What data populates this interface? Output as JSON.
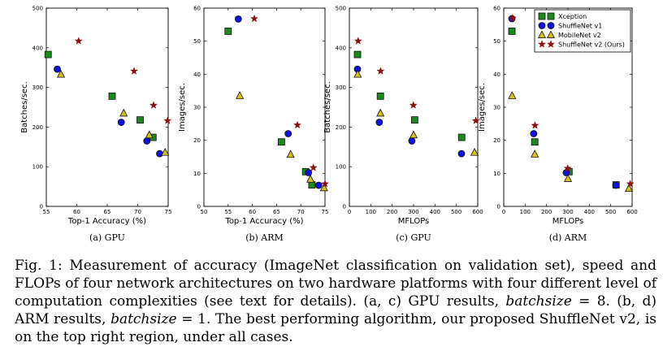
{
  "colors": {
    "Xception": "#1a8a1a",
    "ShuffleNet v1": "#1010e0",
    "MobileNet v2": "#d4c21a",
    "ShuffleNet v2 (Ours)": "#8b1010"
  },
  "chart_data": [
    {
      "type": "scatter",
      "title": "(a) GPU",
      "xlabel": "Top-1 Accuracy (%)",
      "ylabel": "Batches/sec.",
      "xlim": [
        55,
        75
      ],
      "ylim": [
        0,
        500
      ],
      "xticks": [
        55,
        60,
        65,
        70,
        75
      ],
      "yticks": [
        0,
        100,
        200,
        300,
        400,
        500
      ],
      "series": [
        {
          "name": "Xception",
          "marker": "square",
          "points": [
            [
              55.3,
              383
            ],
            [
              65.8,
              278
            ],
            [
              70.4,
              218
            ],
            [
              72.5,
              174
            ]
          ]
        },
        {
          "name": "ShuffleNet v1",
          "marker": "circle",
          "points": [
            [
              56.8,
              346
            ],
            [
              67.3,
              212
            ],
            [
              71.5,
              165
            ],
            [
              73.6,
              133
            ]
          ]
        },
        {
          "name": "MobileNet v2",
          "marker": "triangle",
          "points": [
            [
              57.4,
              333
            ],
            [
              67.7,
              235
            ],
            [
              71.9,
              180
            ],
            [
              74.5,
              136
            ]
          ]
        },
        {
          "name": "ShuffleNet v2 (Ours)",
          "marker": "star",
          "points": [
            [
              60.3,
              417
            ],
            [
              69.4,
              341
            ],
            [
              72.6,
              255
            ],
            [
              74.9,
              216
            ]
          ]
        }
      ]
    },
    {
      "type": "scatter",
      "title": "(b) ARM",
      "xlabel": "Top-1 Accuracy (%)",
      "ylabel": "Images/sec.",
      "xlim": [
        50,
        75
      ],
      "ylim": [
        0,
        60
      ],
      "xticks": [
        50,
        55,
        60,
        65,
        70,
        75
      ],
      "yticks": [
        0,
        10,
        20,
        30,
        40,
        50,
        60
      ],
      "series": [
        {
          "name": "Xception",
          "marker": "square",
          "points": [
            [
              55.0,
              53
            ],
            [
              66.0,
              19.5
            ],
            [
              71.0,
              10.5
            ],
            [
              72.3,
              6.5
            ]
          ]
        },
        {
          "name": "ShuffleNet v1",
          "marker": "circle",
          "points": [
            [
              57.1,
              56.7
            ],
            [
              67.4,
              22
            ],
            [
              71.6,
              10.2
            ],
            [
              73.7,
              6.4
            ]
          ]
        },
        {
          "name": "MobileNet v2",
          "marker": "triangle",
          "points": [
            [
              57.4,
              33.5
            ],
            [
              67.9,
              15.7
            ],
            [
              72.0,
              8.2
            ],
            [
              74.8,
              5.6
            ]
          ]
        },
        {
          "name": "ShuffleNet v2 (Ours)",
          "marker": "star",
          "points": [
            [
              60.4,
              56.8
            ],
            [
              69.3,
              24.6
            ],
            [
              72.6,
              11.7
            ],
            [
              75.0,
              6.8
            ]
          ]
        }
      ]
    },
    {
      "type": "scatter",
      "title": "(c) GPU",
      "xlabel": "MFLOPs",
      "ylabel": "Batches/sec.",
      "xlim": [
        0,
        600
      ],
      "ylim": [
        0,
        500
      ],
      "xticks": [
        0,
        100,
        200,
        300,
        400,
        500,
        600
      ],
      "yticks": [
        0,
        100,
        200,
        300,
        400,
        500
      ],
      "series": [
        {
          "name": "Xception",
          "marker": "square",
          "points": [
            [
              38,
              383
            ],
            [
              145,
              278
            ],
            [
              305,
              218
            ],
            [
              525,
              174
            ]
          ]
        },
        {
          "name": "ShuffleNet v1",
          "marker": "circle",
          "points": [
            [
              38,
              346
            ],
            [
              140,
              212
            ],
            [
              292,
              165
            ],
            [
              524,
              133
            ]
          ]
        },
        {
          "name": "MobileNet v2",
          "marker": "triangle",
          "points": [
            [
              39,
              333
            ],
            [
              145,
              235
            ],
            [
              300,
              180
            ],
            [
              585,
              136
            ]
          ]
        },
        {
          "name": "ShuffleNet v2 (Ours)",
          "marker": "star",
          "points": [
            [
              41,
              417
            ],
            [
              146,
              341
            ],
            [
              299,
              255
            ],
            [
              591,
              216
            ]
          ]
        }
      ]
    },
    {
      "type": "scatter",
      "title": "(d) ARM",
      "xlabel": "MFLOPs",
      "ylabel": "Images/sec.",
      "xlim": [
        0,
        600
      ],
      "ylim": [
        0,
        60
      ],
      "xticks": [
        0,
        100,
        200,
        300,
        400,
        500,
        600
      ],
      "yticks": [
        0,
        10,
        20,
        30,
        40,
        50,
        60
      ],
      "legend_position": "top-right",
      "series": [
        {
          "name": "Xception",
          "marker": "square",
          "points": [
            [
              38,
              53
            ],
            [
              145,
              19.5
            ],
            [
              305,
              10.5
            ],
            [
              525,
              6.5
            ]
          ]
        },
        {
          "name": "ShuffleNet v1",
          "marker": "circle",
          "points": [
            [
              38,
              56.8
            ],
            [
              140,
              22
            ],
            [
              292,
              10.2
            ],
            [
              524,
              6.4
            ]
          ]
        },
        {
          "name": "MobileNet v2",
          "marker": "triangle",
          "points": [
            [
              39,
              33.5
            ],
            [
              145,
              15.8
            ],
            [
              300,
              8.4
            ],
            [
              585,
              5.4
            ]
          ]
        },
        {
          "name": "ShuffleNet v2 (Ours)",
          "marker": "star",
          "points": [
            [
              41,
              57
            ],
            [
              146,
              24.5
            ],
            [
              299,
              11.5
            ],
            [
              591,
              6.8
            ]
          ]
        }
      ]
    }
  ],
  "caption": {
    "lead": "Fig. 1: Measurement of accuracy (ImageNet classification on validation set), speed and FLOPs of four network architectures on two hardware platforms with four different level of computation complexities (see text for details). (a, c) GPU results,",
    "var1": "batchsize",
    "eq1": " = 8. (b, d) ARM results,",
    "var2": "batchsize",
    "tail": " = 1. The best performing algorithm, our proposed ShuffleNet v2, is on the top right region, under all cases."
  }
}
